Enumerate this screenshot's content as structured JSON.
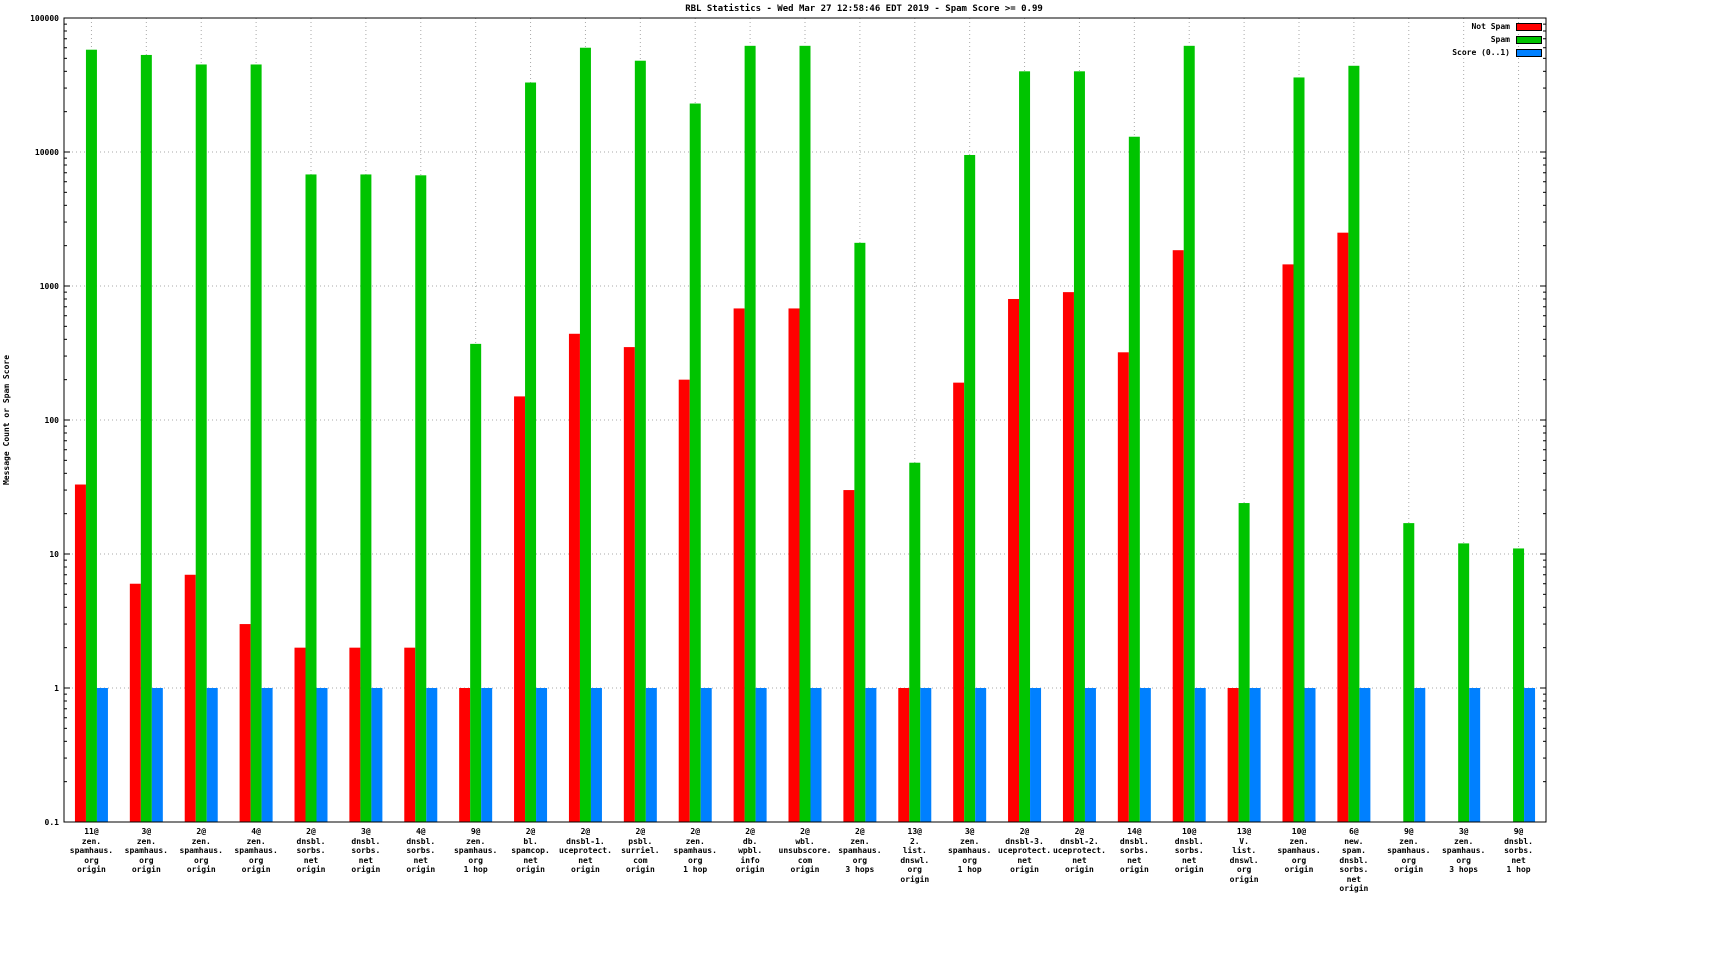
{
  "title": "RBL Statistics - Wed Mar 27 12:58:46 EDT 2019 - Spam Score >= 0.99",
  "ylabel": "Message Count or Spam Score",
  "legend": [
    {
      "label": "Not Spam",
      "color": "#ff0000"
    },
    {
      "label": "Spam",
      "color": "#00c400"
    },
    {
      "label": "Score (0..1)",
      "color": "#0080ff"
    }
  ],
  "colors": {
    "not_spam": "#ff0000",
    "spam": "#00c400",
    "score": "#0080ff",
    "grid": "#aaaaaa",
    "axis": "#000000"
  },
  "chart_data": {
    "type": "bar",
    "title": "RBL Statistics - Wed Mar 27 12:58:46 EDT 2019 - Spam Score >= 0.99",
    "xlabel": "",
    "ylabel": "Message Count or Spam Score",
    "yscale": "log",
    "ylim": [
      0.1,
      100000
    ],
    "yticks": [
      "0.1",
      "1",
      "10",
      "100",
      "1000",
      "10000",
      "100000"
    ],
    "grid": true,
    "legend_position": "top-right",
    "categories": [
      [
        "11@",
        "zen.",
        "spamhaus.",
        "org",
        "origin"
      ],
      [
        "3@",
        "zen.",
        "spamhaus.",
        "org",
        "origin"
      ],
      [
        "2@",
        "zen.",
        "spamhaus.",
        "org",
        "origin"
      ],
      [
        "4@",
        "zen.",
        "spamhaus.",
        "org",
        "origin"
      ],
      [
        "2@",
        "dnsbl.",
        "sorbs.",
        "net",
        "origin"
      ],
      [
        "3@",
        "dnsbl.",
        "sorbs.",
        "net",
        "origin"
      ],
      [
        "4@",
        "dnsbl.",
        "sorbs.",
        "net",
        "origin"
      ],
      [
        "9@",
        "zen.",
        "spamhaus.",
        "org",
        "1 hop"
      ],
      [
        "2@",
        "bl.",
        "spamcop.",
        "net",
        "origin"
      ],
      [
        "2@",
        "dnsbl-1.",
        "uceprotect.",
        "net",
        "origin"
      ],
      [
        "2@",
        "psbl.",
        "surriel.",
        "com",
        "origin"
      ],
      [
        "2@",
        "zen.",
        "spamhaus.",
        "org",
        "1 hop"
      ],
      [
        "2@",
        "db.",
        "wpbl.",
        "info",
        "origin"
      ],
      [
        "2@",
        "wbl.",
        "unsubscore.",
        "com",
        "origin"
      ],
      [
        "2@",
        "zen.",
        "spamhaus.",
        "org",
        "3 hops"
      ],
      [
        "13@",
        "2.",
        "list.",
        "dnswl.",
        "org",
        "origin"
      ],
      [
        "3@",
        "zen.",
        "spamhaus.",
        "org",
        "1 hop"
      ],
      [
        "2@",
        "dnsbl-3.",
        "uceprotect.",
        "net",
        "origin"
      ],
      [
        "2@",
        "dnsbl-2.",
        "uceprotect.",
        "net",
        "origin"
      ],
      [
        "14@",
        "dnsbl.",
        "sorbs.",
        "net",
        "origin"
      ],
      [
        "10@",
        "dnsbl.",
        "sorbs.",
        "net",
        "origin"
      ],
      [
        "13@",
        "V.",
        "list.",
        "dnswl.",
        "org",
        "origin"
      ],
      [
        "10@",
        "zen.",
        "spamhaus.",
        "org",
        "origin"
      ],
      [
        "6@",
        "new.",
        "spam.",
        "dnsbl.",
        "sorbs.",
        "net",
        "origin"
      ],
      [
        "9@",
        "zen.",
        "spamhaus.",
        "org",
        "origin"
      ],
      [
        "3@",
        "zen.",
        "spamhaus.",
        "org",
        "3 hops"
      ],
      [
        "9@",
        "dnsbl.",
        "sorbs.",
        "net",
        "1 hop"
      ]
    ],
    "series": [
      {
        "name": "Not Spam",
        "color": "#ff0000",
        "values": [
          33,
          6,
          7,
          3,
          2,
          2,
          2,
          1,
          150,
          440,
          350,
          200,
          680,
          680,
          30,
          1,
          190,
          800,
          900,
          320,
          1850,
          1,
          1450,
          2500,
          0,
          0,
          0
        ]
      },
      {
        "name": "Spam",
        "color": "#00c400",
        "values": [
          58000,
          53000,
          45000,
          45000,
          6800,
          6800,
          6700,
          370,
          33000,
          60000,
          48000,
          23000,
          62000,
          62000,
          2100,
          48,
          9500,
          40000,
          40000,
          13000,
          62000,
          24,
          36000,
          44000,
          17,
          12,
          11
        ]
      },
      {
        "name": "Score (0..1)",
        "color": "#0080ff",
        "values": [
          1,
          1,
          1,
          1,
          1,
          1,
          1,
          1,
          1,
          1,
          1,
          1,
          1,
          1,
          1,
          1,
          1,
          1,
          1,
          1,
          1,
          1,
          1,
          1,
          1,
          1,
          1
        ]
      }
    ]
  }
}
